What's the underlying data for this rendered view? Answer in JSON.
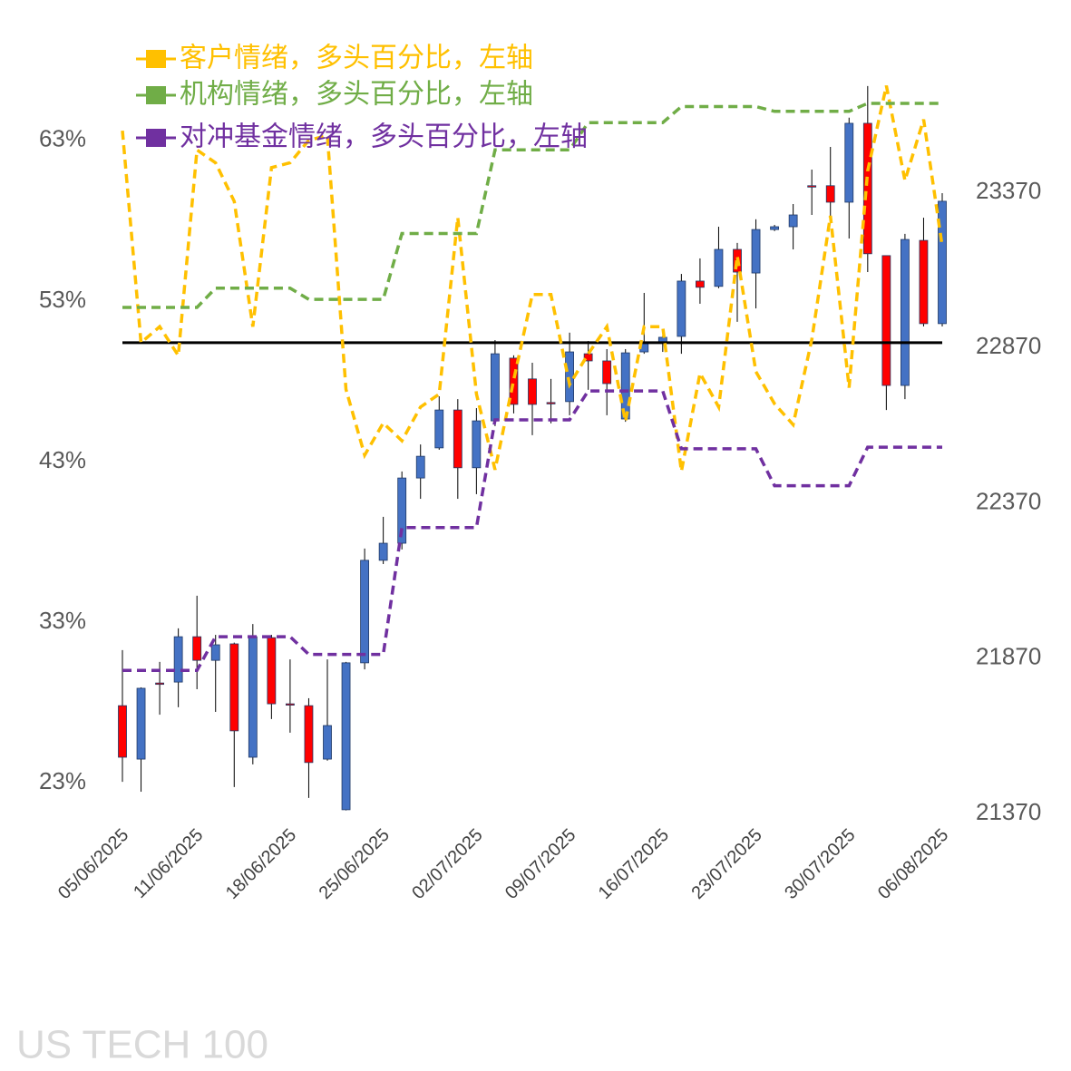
{
  "chart_data": {
    "type": "candlestick",
    "watermark": "US TECH 100",
    "categories": [
      "05/06/2025",
      null,
      null,
      null,
      "11/06/2025",
      null,
      null,
      null,
      null,
      "18/06/2025",
      null,
      null,
      null,
      null,
      "25/06/2025",
      null,
      null,
      null,
      null,
      "02/07/2025",
      null,
      null,
      null,
      null,
      "09/07/2025",
      null,
      null,
      null,
      null,
      "16/07/2025",
      null,
      null,
      null,
      null,
      "23/07/2025",
      null,
      null,
      null,
      null,
      "30/07/2025",
      null,
      null,
      null,
      null,
      "06/08/2025"
    ],
    "candles": {
      "axis": "y2",
      "up_color": "#4472c4",
      "down_color": "#ff0000",
      "open": [
        21717,
        21545,
        21790,
        21793,
        21939,
        21863,
        21916,
        21551,
        21936,
        21723,
        21717,
        21545,
        21382,
        21855,
        22185,
        22240,
        22450,
        22547,
        22669,
        22483,
        22634,
        22836,
        22769,
        22693,
        22696,
        22850,
        22827,
        22640,
        22856,
        22885,
        22906,
        23084,
        23067,
        23186,
        23110,
        23250,
        23259,
        23391,
        23391,
        23338,
        23592,
        23166,
        22748,
        23215,
        22947
      ],
      "high": [
        21896,
        21776,
        21858,
        21966,
        22071,
        21945,
        21920,
        21980,
        21945,
        21866,
        21741,
        21866,
        21858,
        22223,
        22325,
        22471,
        22558,
        22713,
        22704,
        22675,
        22894,
        22845,
        22821,
        22769,
        22918,
        22891,
        22865,
        22865,
        23046,
        22909,
        23107,
        23157,
        23259,
        23207,
        23283,
        23265,
        23332,
        23443,
        23516,
        23610,
        23712,
        23166,
        23236,
        23288,
        23367
      ],
      "low": [
        21472,
        21440,
        21688,
        21712,
        21770,
        21697,
        21455,
        21528,
        21674,
        21630,
        21420,
        21540,
        21380,
        21834,
        22173,
        22220,
        22383,
        22541,
        22383,
        22398,
        22617,
        22658,
        22588,
        22626,
        22652,
        22734,
        22652,
        22631,
        22850,
        22856,
        22850,
        23011,
        23061,
        22953,
        22996,
        23245,
        23186,
        23297,
        23288,
        23221,
        23113,
        22669,
        22704,
        22938,
        22938
      ],
      "close": [
        21551,
        21773,
        21788,
        21939,
        21863,
        21913,
        21636,
        21939,
        21723,
        21721,
        21534,
        21653,
        21855,
        22185,
        22240,
        22450,
        22520,
        22669,
        22483,
        22634,
        22850,
        22687,
        22687,
        22691,
        22856,
        22827,
        22754,
        22853,
        22885,
        22903,
        23084,
        23064,
        23186,
        23113,
        23250,
        23259,
        23297,
        23389,
        23338,
        23592,
        23172,
        22748,
        23218,
        22947,
        23341
      ]
    },
    "series": [
      {
        "name": "客户情绪，多头百分比，左轴",
        "color": "#ffc000",
        "axis": "y",
        "values": [
          63.6,
          50.4,
          51.4,
          49.6,
          62.4,
          61.6,
          59.2,
          51.4,
          61.3,
          61.6,
          63.0,
          63.3,
          47.5,
          43.4,
          45.4,
          44.3,
          46.4,
          47.2,
          58.2,
          47.2,
          42.5,
          48.1,
          53.4,
          53.4,
          47.8,
          49.7,
          51.4,
          45.5,
          51.4,
          51.4,
          42.4,
          48.5,
          46.4,
          55.8,
          48.6,
          46.6,
          45.3,
          50.6,
          58.3,
          47.6,
          61.1,
          66.4,
          60.5,
          64.3,
          56.4
        ]
      },
      {
        "name": "机构情绪，多头百分比，左轴",
        "color": "#70ad47",
        "axis": "y",
        "values": [
          52.6,
          52.6,
          52.6,
          52.6,
          52.6,
          53.8,
          53.8,
          53.8,
          53.8,
          53.8,
          53.1,
          53.1,
          53.1,
          53.1,
          53.1,
          57.2,
          57.2,
          57.2,
          57.2,
          57.2,
          62.4,
          62.4,
          62.4,
          62.4,
          62.4,
          64.1,
          64.1,
          64.1,
          64.1,
          64.1,
          65.1,
          65.1,
          65.1,
          65.1,
          65.1,
          64.8,
          64.8,
          64.8,
          64.8,
          64.8,
          65.3,
          65.3,
          65.3,
          65.3,
          65.3
        ]
      },
      {
        "name": "对冲基金情绪，多头百分比，左轴",
        "color": "#7030a0",
        "axis": "y",
        "values": [
          30.0,
          30.0,
          30.0,
          30.0,
          30.0,
          32.1,
          32.1,
          32.1,
          32.1,
          32.1,
          31.0,
          31.0,
          31.0,
          31.0,
          31.0,
          38.9,
          38.9,
          38.9,
          38.9,
          38.9,
          45.6,
          45.6,
          45.6,
          45.6,
          45.6,
          47.4,
          47.4,
          47.4,
          47.4,
          47.4,
          43.8,
          43.8,
          43.8,
          43.8,
          43.8,
          41.5,
          41.5,
          41.5,
          41.5,
          41.5,
          43.9,
          43.9,
          43.9,
          43.9,
          43.9
        ]
      }
    ],
    "reference_line": 50.4,
    "ylim": [
      21.1,
      67.5
    ],
    "yticks": [
      {
        "value": 23,
        "label": "23%"
      },
      {
        "value": 33,
        "label": "33%"
      },
      {
        "value": 43,
        "label": "43%"
      },
      {
        "value": 53,
        "label": "53%"
      },
      {
        "value": 63,
        "label": "63%"
      }
    ],
    "y2lim": [
      21370,
      23770
    ],
    "y2ticks": [
      21370,
      21870,
      22370,
      22870,
      23370
    ]
  }
}
